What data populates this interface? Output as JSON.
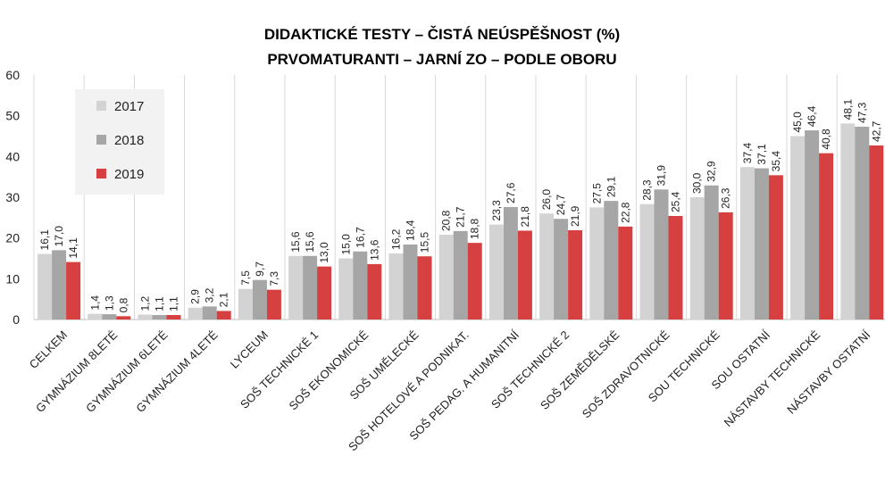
{
  "chart_data": {
    "type": "bar",
    "title": "DIDAKTICKÉ TESTY – ČISTÁ NEÚSPĚŠNOST (%)",
    "subtitle": "PRVOMATURANTI – JARNÍ ZO – PODLE OBORU",
    "xlabel": "",
    "ylabel": "",
    "ylim": [
      0,
      60
    ],
    "yticks": [
      "0",
      "10",
      "20",
      "30",
      "40",
      "50",
      "60"
    ],
    "grid": "vertical",
    "legend_position": "top-left",
    "categories": [
      "CELKEM",
      "GYMNÁZIUM 8LETÉ",
      "GYMNÁZIUM 6LETÉ",
      "GYMNÁZIUM 4LETÉ",
      "LYCEUM",
      "SOŠ TECHNICKÉ 1",
      "SOŠ EKONOMICKÉ",
      "SOŠ UMĚLECKÉ",
      "SOŠ HOTELOVÉ A PODNIKAT.",
      "SOŠ PEDAG. A HUMANITNÍ",
      "SOŠ TECHNICKÉ 2",
      "SOŠ ZEMĚDĚLSKÉ",
      "SOŠ ZDRAVOTNICKÉ",
      "SOU TECHNICKÉ",
      "SOU OSTATNÍ",
      "NÁSTAVBY TECHNICKÉ",
      "NÁSTAVBY OSTATNÍ"
    ],
    "series": [
      {
        "name": "2017",
        "color": "#d3d3d3",
        "values": [
          16.1,
          1.4,
          1.2,
          2.9,
          7.5,
          15.6,
          15.0,
          16.2,
          20.8,
          23.3,
          26.0,
          27.5,
          28.3,
          30.0,
          37.4,
          45.0,
          48.1
        ],
        "labels": [
          "16,1",
          "1,4",
          "1,2",
          "2,9",
          "7,5",
          "15,6",
          "15,0",
          "16,2",
          "20,8",
          "23,3",
          "26,0",
          "27,5",
          "28,3",
          "30,0",
          "37,4",
          "45,0",
          "48,1"
        ]
      },
      {
        "name": "2018",
        "color": "#a6a6a6",
        "values": [
          17.0,
          1.3,
          1.1,
          3.2,
          9.7,
          15.6,
          16.7,
          18.4,
          21.7,
          27.6,
          24.7,
          29.1,
          31.9,
          32.9,
          37.1,
          46.4,
          47.3
        ],
        "labels": [
          "17,0",
          "1,3",
          "1,1",
          "3,2",
          "9,7",
          "15,6",
          "16,7",
          "18,4",
          "21,7",
          "27,6",
          "24,7",
          "29,1",
          "31,9",
          "32,9",
          "37,1",
          "46,4",
          "47,3"
        ]
      },
      {
        "name": "2019",
        "color": "#d64040",
        "values": [
          14.1,
          0.8,
          1.1,
          2.1,
          7.3,
          13.0,
          13.6,
          15.5,
          18.8,
          21.8,
          21.9,
          22.8,
          25.4,
          26.3,
          35.4,
          40.8,
          42.7
        ],
        "labels": [
          "14,1",
          "0,8",
          "1,1",
          "2,1",
          "7,3",
          "13,0",
          "13,6",
          "15,5",
          "18,8",
          "21,8",
          "21,9",
          "22,8",
          "25,4",
          "26,3",
          "35,4",
          "40,8",
          "42,7"
        ]
      }
    ]
  }
}
